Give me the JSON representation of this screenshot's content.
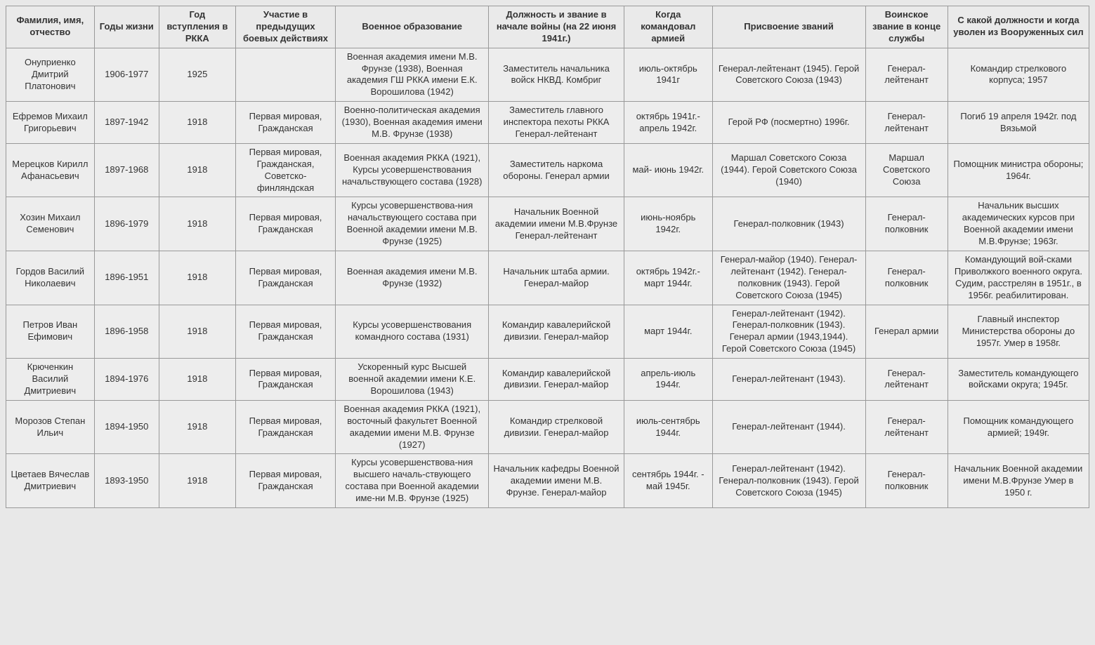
{
  "table": {
    "columns": [
      "Фамилия, имя, отчество",
      "Годы жизни",
      "Год вступления в РККА",
      "Участие в предыдущих боевых действиях",
      "Военное образование",
      "Должность и звание в начале войны (на 22 июня 1941г.)",
      "Когда командовал армией",
      "Присвоение званий",
      "Воинское звание в конце службы",
      "С какой должности и когда уволен из Вооруженных сил"
    ],
    "rows": [
      {
        "name": "Онуприенко Дмитрий Платонович",
        "years": "1906-1977",
        "joined": "1925",
        "prev": "",
        "edu": "Военная академия имени М.В. Фрунзе (1938), Военная академия ГШ РККА имени Е.К. Ворошилова (1942)",
        "position": "Заместитель начальника войск НКВД. Комбриг",
        "commanded": "июль-октябрь 1941г",
        "ranks": "Генерал-лейтенант (1945). Герой Советского Союза (1943)",
        "final_rank": "Генерал-лейтенант",
        "dismissed": "Командир стрелкового корпуса; 1957"
      },
      {
        "name": "Ефремов Михаил Григорьевич",
        "years": "1897-1942",
        "joined": "1918",
        "prev": "Первая мировая, Гражданская",
        "edu": "Военно-политическая академия (1930), Военная академия имени М.В. Фрунзе (1938)",
        "position": "Заместитель главного инспектора пехоты РККА Генерал-лейтенант",
        "commanded": "октябрь 1941г.- апрель 1942г.",
        "ranks": "Герой РФ (посмертно) 1996г.",
        "final_rank": "Генерал-лейтенант",
        "dismissed": "Погиб 19 апреля 1942г. под Вязьмой"
      },
      {
        "name": "Мерецков Кирилл Афанасьевич",
        "years": "1897-1968",
        "joined": "1918",
        "prev": "Первая мировая, Гражданская, Советско-финляндская",
        "edu": "Военная академия РККА (1921), Курсы усовершенствования начальствующего состава (1928)",
        "position": "Заместитель наркома обороны. Генерал армии",
        "commanded": "май- июнь 1942г.",
        "ranks": "Маршал Советского Союза (1944). Герой Советского Союза (1940)",
        "final_rank": "Маршал Советского Союза",
        "dismissed": "Помощник министра обороны; 1964г."
      },
      {
        "name": "Хозин Михаил Семенович",
        "years": "1896-1979",
        "joined": "1918",
        "prev": "Первая мировая, Гражданская",
        "edu": "Курсы усовершенствова-ния начальствующего состава при Военной академии имени М.В. Фрунзе (1925)",
        "position": "Начальник Военной академии имени М.В.Фрунзе Генерал-лейтенант",
        "commanded": "июнь-ноябрь 1942г.",
        "ranks": "Генерал-полковник (1943)",
        "final_rank": "Генерал-полковник",
        "dismissed": "Начальник высших академических курсов при Военной академии имени М.В.Фрунзе; 1963г."
      },
      {
        "name": "Гордов Василий Николаевич",
        "years": "1896-1951",
        "joined": "1918",
        "prev": "Первая мировая, Гражданская",
        "edu": "Военная академия имени М.В. Фрунзе (1932)",
        "position": "Начальник штаба армии. Генерал-майор",
        "commanded": "октябрь 1942г.- март 1944г.",
        "ranks": "Генерал-майор (1940). Генерал-лейтенант (1942). Генерал-полковник (1943). Герой Советского Союза (1945)",
        "final_rank": "Генерал-полковник",
        "dismissed": "Командующий вой-сками Приволжкого военного округа. Судим, расстрелян в 1951г., в 1956г. реабилитирован."
      },
      {
        "name": "Петров Иван Ефимович",
        "years": "1896-1958",
        "joined": "1918",
        "prev": "Первая мировая, Гражданская",
        "edu": "Курсы усовершенствования командного состава (1931)",
        "position": "Командир кавалерийской дивизии. Генерал-майор",
        "commanded": "март 1944г.",
        "ranks": "Генерал-лейтенант (1942). Генерал-полковник (1943). Генерал армии (1943,1944). Герой Советского Союза (1945)",
        "final_rank": "Генерал армии",
        "dismissed": "Главный инспектор Министерства обороны до 1957г. Умер в 1958г."
      },
      {
        "name": "Крюченкин Василий Дмитриевич",
        "years": "1894-1976",
        "joined": "1918",
        "prev": "Первая мировая, Гражданская",
        "edu": "Ускоренный курс Высшей военной академии имени К.Е. Ворошилова (1943)",
        "position": "Командир кавалерийской дивизии. Генерал-майор",
        "commanded": "апрель-июль 1944г.",
        "ranks": "Генерал-лейтенант (1943).",
        "final_rank": "Генерал-лейтенант",
        "dismissed": "Заместитель командующего войсками округа; 1945г."
      },
      {
        "name": "Морозов Степан Ильич",
        "years": "1894-1950",
        "joined": "1918",
        "prev": "Первая мировая, Гражданская",
        "edu": "Военная академия РККА (1921), восточный факультет Военной академии имени М.В. Фрунзе (1927)",
        "position": "Командир стрелковой дивизии. Генерал-майор",
        "commanded": "июль-сентябрь 1944г.",
        "ranks": "Генерал-лейтенант (1944).",
        "final_rank": "Генерал-лейтенант",
        "dismissed": "Помощник командующего армией; 1949г."
      },
      {
        "name": "Цветаев Вячеслав Дмитриевич",
        "years": "1893-1950",
        "joined": "1918",
        "prev": "Первая мировая, Гражданская",
        "edu": "Курсы усовершенствова-ния высшего началь-ствующего состава при Военной академии име-ни М.В. Фрунзе (1925)",
        "position": "Начальник кафедры Военной академии имени М.В. Фрунзе. Генерал-майор",
        "commanded": "сентябрь 1944г. - май 1945г.",
        "ranks": "Генерал-лейтенант (1942). Генерал-полковник (1943). Герой Советского Союза (1945)",
        "final_rank": "Генерал-полковник",
        "dismissed": "Начальник Военной академии имени М.В.Фрунзе Умер в 1950 г."
      }
    ]
  }
}
